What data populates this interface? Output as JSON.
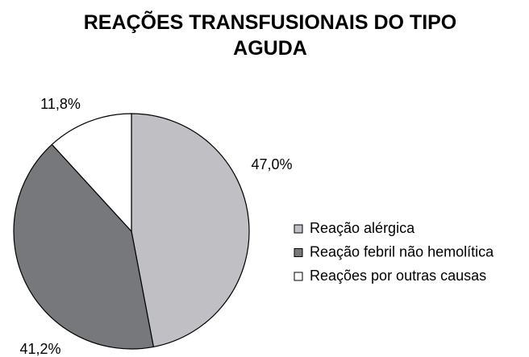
{
  "chart_data": {
    "type": "pie",
    "title": "REAÇÕES TRANSFUSIONAIS DO TIPO AGUDA",
    "categories": [
      "Reação alérgica",
      "Reação febril não hemolítica",
      "Reações por outras causas"
    ],
    "values": [
      47.0,
      41.2,
      11.8
    ],
    "value_labels": [
      "47,0%",
      "41,2%",
      "11,8%"
    ],
    "colors": [
      "#c0c0c4",
      "#76787b",
      "#ffffff"
    ],
    "legend": "right"
  }
}
